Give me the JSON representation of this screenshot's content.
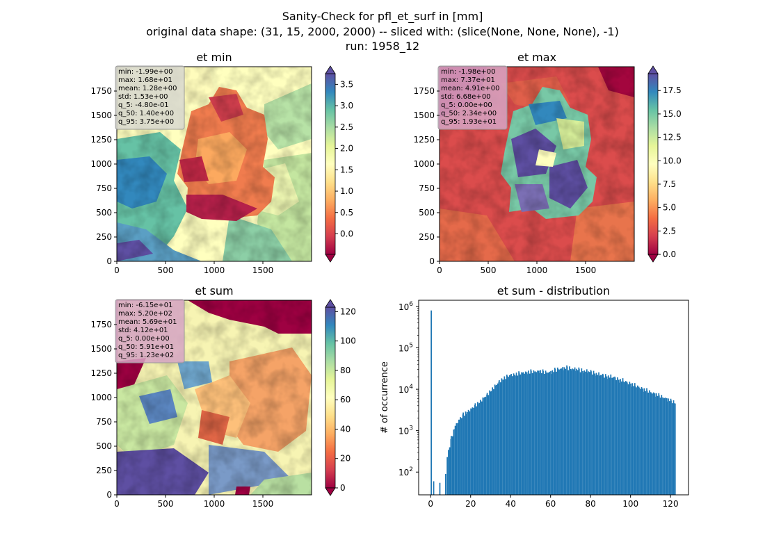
{
  "suptitle": {
    "line1": "Sanity-Check for pfl_et_surf in [mm]",
    "line2": "original data shape: (31, 15, 2000, 2000) -- sliced with: (slice(None, None, None), -1)",
    "line3": "run: 1958_12"
  },
  "colors": {
    "ocean_high": "#5e4fa2",
    "land_low": "#9e0142",
    "hist_bar": "#1f77b4",
    "stats_box_min": "#d8d8d0",
    "stats_box_max": "#d7a6c6"
  },
  "chart_data": [
    {
      "type": "heatmap",
      "title": "et min",
      "colormap": "Spectral",
      "xlim": [
        0,
        2000
      ],
      "ylim": [
        0,
        2000
      ],
      "xticks": [
        "0",
        "500",
        "1000",
        "1500"
      ],
      "yticks": [
        "0",
        "250",
        "500",
        "750",
        "1000",
        "1250",
        "1500",
        "1750"
      ],
      "colorbar": {
        "vmin": -0.48,
        "vmax": 3.75,
        "ticks": [
          "3.5",
          "3.0",
          "2.5",
          "2.0",
          "1.5",
          "1.0",
          "0.5",
          "0.0"
        ],
        "tick_values": [
          3.5,
          3.0,
          2.5,
          2.0,
          1.5,
          1.0,
          0.5,
          0.0
        ],
        "extend": "both"
      },
      "stats": [
        "min: -1.99e+00",
        "max: 1.68e+01",
        "mean: 1.28e+00",
        "std: 1.53e+00",
        "q_5: -4.80e-01",
        "q_50: 1.40e+00",
        "q_95: 3.75e+00"
      ]
    },
    {
      "type": "heatmap",
      "title": "et max",
      "colormap": "Spectral",
      "xlim": [
        0,
        2000
      ],
      "ylim": [
        0,
        2000
      ],
      "xticks": [
        "0",
        "500",
        "1000",
        "1500"
      ],
      "yticks": [
        "0",
        "250",
        "500",
        "750",
        "1000",
        "1250",
        "1500",
        "1750"
      ],
      "colorbar": {
        "vmin": 0.0,
        "vmax": 19.3,
        "ticks": [
          "17.5",
          "15.0",
          "12.5",
          "10.0",
          "7.5",
          "5.0",
          "2.5",
          "0.0"
        ],
        "tick_values": [
          17.5,
          15.0,
          12.5,
          10.0,
          7.5,
          5.0,
          2.5,
          0.0
        ],
        "extend": "both"
      },
      "stats": [
        "min: -1.98e+00",
        "max: 7.37e+01",
        "mean: 4.91e+00",
        "std: 6.68e+00",
        "q_5: 0.00e+00",
        "q_50: 2.34e+00",
        "q_95: 1.93e+01"
      ]
    },
    {
      "type": "heatmap",
      "title": "et sum",
      "colormap": "Spectral",
      "xlim": [
        0,
        2000
      ],
      "ylim": [
        0,
        2000
      ],
      "xticks": [
        "0",
        "500",
        "1000",
        "1500"
      ],
      "yticks": [
        "0",
        "250",
        "500",
        "750",
        "1000",
        "1250",
        "1500",
        "1750"
      ],
      "colorbar": {
        "vmin": 0.0,
        "vmax": 123,
        "ticks": [
          "120",
          "100",
          "80",
          "60",
          "40",
          "20",
          "0"
        ],
        "tick_values": [
          120,
          100,
          80,
          60,
          40,
          20,
          0
        ],
        "extend": "both"
      },
      "stats": [
        "min: -6.15e+01",
        "max: 5.20e+02",
        "mean: 5.69e+01",
        "std: 4.12e+01",
        "q_5: 0.00e+00",
        "q_50: 5.91e+01",
        "q_95: 1.23e+02"
      ]
    },
    {
      "type": "bar",
      "subtype": "histogram",
      "title": "et sum - distribution",
      "xlabel": "",
      "ylabel": "# of occurrence",
      "xlim": [
        -6,
        129
      ],
      "ylim_log": [
        1.45,
        6.15
      ],
      "yscale": "log",
      "xticks": [
        0,
        20,
        40,
        60,
        80,
        100,
        120
      ],
      "xtick_labels": [
        "0",
        "20",
        "40",
        "60",
        "80",
        "100",
        "120"
      ],
      "yticks": [
        "10^2",
        "10^3",
        "10^4",
        "10^5",
        "10^6"
      ],
      "bin_width": 0.61,
      "spikes": [
        {
          "x": 0,
          "y": 800000
        },
        {
          "x": 1.2,
          "y": 60
        },
        {
          "x": 4.3,
          "y": 55
        },
        {
          "x": 7.2,
          "y": 90
        }
      ],
      "x": [
        8,
        10,
        12,
        14,
        16,
        18,
        20,
        22,
        24,
        26,
        28,
        30,
        32,
        34,
        36,
        38,
        40,
        42,
        44,
        46,
        48,
        50,
        52,
        54,
        56,
        58,
        60,
        62,
        64,
        66,
        68,
        70,
        72,
        74,
        76,
        78,
        80,
        82,
        84,
        86,
        88,
        90,
        92,
        94,
        96,
        98,
        100,
        102,
        104,
        106,
        108,
        110,
        112,
        114,
        116,
        118,
        120,
        122
      ],
      "values": [
        250,
        700,
        1400,
        2000,
        2600,
        3100,
        3600,
        4400,
        5300,
        6500,
        8000,
        10500,
        13000,
        16500,
        20000,
        22000,
        24000,
        25000,
        26000,
        27000,
        28000,
        28500,
        29000,
        29500,
        28000,
        27500,
        28000,
        31000,
        33000,
        34000,
        35000,
        33000,
        32000,
        31000,
        29000,
        28000,
        27000,
        25000,
        23000,
        22000,
        21000,
        20000,
        19000,
        17000,
        16000,
        14500,
        13500,
        12000,
        11000,
        10000,
        9000,
        8200,
        7500,
        6800,
        6200,
        5600,
        5000,
        4500
      ]
    }
  ]
}
